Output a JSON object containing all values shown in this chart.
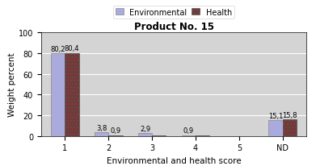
{
  "title": "Product No. 15",
  "xlabel": "Environmental and health score",
  "ylabel": "Weight percent",
  "categories": [
    "1",
    "2",
    "3",
    "4",
    "5",
    "ND"
  ],
  "env_values": [
    80.2,
    3.8,
    2.9,
    0.9,
    0.0,
    15.1
  ],
  "health_values": [
    80.4,
    0.9,
    0.9,
    0.9,
    0.0,
    15.8
  ],
  "env_labels": [
    "80,2",
    "3,8",
    "2,9",
    "0,9",
    "",
    "15,1"
  ],
  "health_labels": [
    "80,4",
    "0,9",
    "",
    "",
    "",
    "15,8"
  ],
  "env_color": "#aaaadd",
  "health_color": "#7a3535",
  "health_hatch_color": "#a06060",
  "ylim": [
    0,
    100
  ],
  "yticks": [
    0,
    20,
    40,
    60,
    80,
    100
  ],
  "bar_width": 0.32,
  "background_color": "#d4d4d4",
  "legend_env": "Environmental",
  "legend_health": "Health",
  "title_fontsize": 8.5,
  "axis_fontsize": 7.5,
  "tick_fontsize": 7,
  "label_fontsize": 6
}
